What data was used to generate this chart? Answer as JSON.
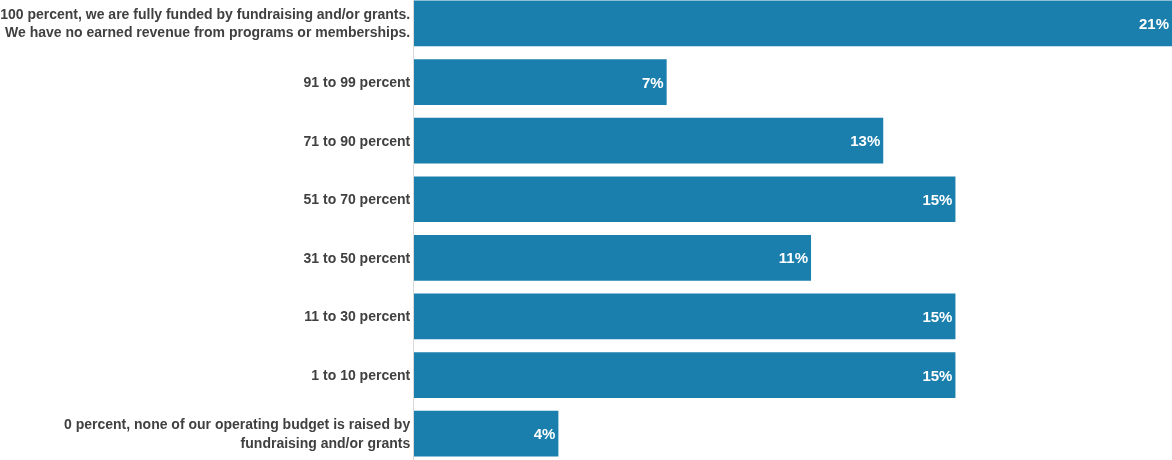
{
  "chart_data": {
    "type": "bar",
    "orientation": "horizontal",
    "value_labels": [
      "21%",
      "7%",
      "13%",
      "15%",
      "11%",
      "15%",
      "15%",
      "4%"
    ],
    "categories": [
      "100 percent, we are fully funded by fundraising and/or grants. We have no earned revenue from programs or memberships.",
      "91 to 99 percent",
      "71 to 90 percent",
      "51 to 70 percent",
      "31 to 50 percent",
      "11 to 30 percent",
      "1 to 10 percent",
      "0 percent, none of our operating budget is raised by fundraising and/or grants"
    ],
    "values": [
      21,
      7,
      13,
      15,
      11,
      15,
      15,
      4
    ],
    "color": "#1a7fad"
  }
}
